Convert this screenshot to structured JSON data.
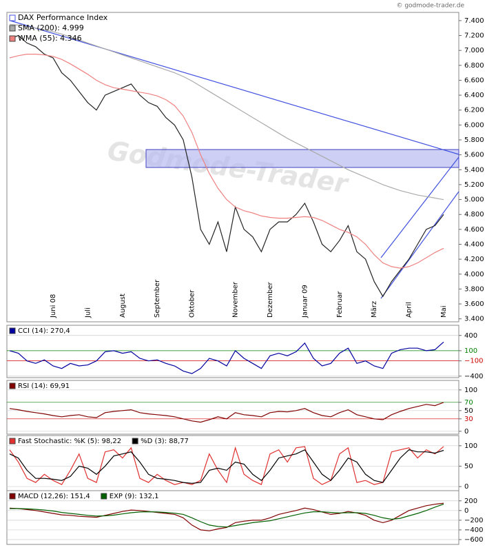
{
  "copyright": "© godmode-trader.de",
  "watermark": "Godmode-Trader",
  "chart_data": [
    {
      "type": "line",
      "categories": [
        null,
        null,
        null,
        null,
        null,
        "Juni 08",
        null,
        null,
        null,
        "Juli",
        null,
        null,
        null,
        "August",
        null,
        null,
        null,
        "September",
        null,
        null,
        null,
        "Oktober",
        null,
        null,
        null,
        null,
        "November",
        null,
        null,
        null,
        "Dezember",
        null,
        null,
        null,
        "Januar 09",
        null,
        null,
        null,
        "Februar",
        null,
        null,
        null,
        "März",
        null,
        null,
        null,
        "April",
        null,
        null,
        null,
        "Mai"
      ],
      "series": [
        {
          "name": "DAX Performance Index",
          "color": "#222222",
          "values": [
            7150,
            7200,
            7100,
            7050,
            6950,
            6900,
            6700,
            6600,
            6450,
            6300,
            6200,
            6400,
            6450,
            6500,
            6550,
            6400,
            6300,
            6250,
            6100,
            6000,
            5800,
            5300,
            4600,
            4400,
            4700,
            4300,
            4900,
            4600,
            4500,
            4300,
            4600,
            4700,
            4700,
            4800,
            4950,
            4700,
            4400,
            4300,
            4450,
            4650,
            4300,
            4200,
            3900,
            3700,
            3900,
            4050,
            4200,
            4400,
            4600,
            4650,
            4800
          ]
        },
        {
          "name": "SMA (200): 4.999",
          "color": "#aaaaaa",
          "values": [
            7350,
            7340,
            7320,
            7300,
            7280,
            7250,
            7220,
            7180,
            7140,
            7100,
            7060,
            7020,
            6980,
            6940,
            6900,
            6860,
            6820,
            6780,
            6740,
            6700,
            6650,
            6590,
            6520,
            6450,
            6380,
            6310,
            6240,
            6170,
            6100,
            6030,
            5960,
            5890,
            5820,
            5760,
            5700,
            5640,
            5580,
            5520,
            5460,
            5400,
            5350,
            5300,
            5250,
            5200,
            5160,
            5120,
            5090,
            5060,
            5040,
            5020,
            4999
          ]
        },
        {
          "name": "WMA (55): 4.346",
          "color": "#f08080",
          "values": [
            6900,
            6930,
            6950,
            6950,
            6940,
            6920,
            6880,
            6820,
            6750,
            6680,
            6600,
            6540,
            6500,
            6480,
            6460,
            6440,
            6420,
            6390,
            6340,
            6260,
            6120,
            5900,
            5600,
            5350,
            5150,
            5000,
            4900,
            4850,
            4820,
            4780,
            4760,
            4750,
            4750,
            4760,
            4770,
            4760,
            4720,
            4660,
            4600,
            4560,
            4500,
            4400,
            4260,
            4150,
            4100,
            4080,
            4100,
            4150,
            4220,
            4290,
            4346
          ]
        }
      ],
      "ylim": [
        3360,
        7510
      ],
      "yticks": [
        {
          "value": 7400,
          "label": "7.400"
        },
        {
          "value": 7200,
          "label": "7.200"
        },
        {
          "value": 7000,
          "label": "7.000"
        },
        {
          "value": 6800,
          "label": "6.800"
        },
        {
          "value": 6600,
          "label": "6.600"
        },
        {
          "value": 6400,
          "label": "6.400"
        },
        {
          "value": 6200,
          "label": "6.200"
        },
        {
          "value": 6000,
          "label": "6.000"
        },
        {
          "value": 5800,
          "label": "5.800"
        },
        {
          "value": 5600,
          "label": "5.600"
        },
        {
          "value": 5400,
          "label": "5.400"
        },
        {
          "value": 5200,
          "label": "5.200"
        },
        {
          "value": 5000,
          "label": "5.000"
        },
        {
          "value": 4800,
          "label": "4.800"
        },
        {
          "value": 4600,
          "label": "4.600"
        },
        {
          "value": 4400,
          "label": "4.400"
        },
        {
          "value": 4200,
          "label": "4.200"
        },
        {
          "value": 4000,
          "label": "4.000"
        },
        {
          "value": 3800,
          "label": "3.800"
        },
        {
          "value": 3600,
          "label": "3.600"
        },
        {
          "value": 3400,
          "label": "3.400"
        }
      ],
      "grid": false
    },
    {
      "type": "line",
      "series": [
        {
          "name": "CCI (14): 270,4",
          "color": "#0000a0",
          "values": [
            100,
            50,
            -100,
            -150,
            -80,
            -200,
            -250,
            -150,
            -200,
            -180,
            -100,
            80,
            100,
            50,
            80,
            -50,
            -100,
            -80,
            -150,
            -200,
            -300,
            -350,
            -250,
            -50,
            -100,
            -200,
            100,
            -50,
            -150,
            -250,
            0,
            50,
            0,
            80,
            250,
            -50,
            -200,
            -150,
            50,
            150,
            -150,
            -100,
            -200,
            -250,
            50,
            120,
            150,
            150,
            100,
            120,
            270.4
          ]
        }
      ],
      "ylim": [
        -430,
        600
      ],
      "yticks": [
        400,
        100,
        {
          "value": -100,
          "label": "−100"
        },
        {
          "value": -400,
          "label": "−400"
        }
      ],
      "ytick_colors": [
        "#000000",
        "#008000",
        "#d00000",
        "#000000"
      ],
      "grid": true
    },
    {
      "type": "line",
      "series": [
        {
          "name": "RSI (14): 69,91",
          "color": "#800000",
          "values": [
            55,
            52,
            48,
            45,
            42,
            38,
            35,
            38,
            40,
            35,
            33,
            45,
            48,
            50,
            52,
            45,
            42,
            40,
            38,
            35,
            30,
            25,
            22,
            28,
            35,
            30,
            45,
            40,
            38,
            35,
            45,
            48,
            47,
            50,
            55,
            45,
            38,
            35,
            45,
            52,
            40,
            35,
            30,
            28,
            40,
            48,
            55,
            60,
            65,
            62,
            69.91
          ]
        }
      ],
      "ylim": [
        -7,
        123
      ],
      "yticks": [
        100,
        70,
        50,
        30,
        0
      ],
      "ytick_colors": [
        "#000000",
        "#008000",
        "#000000",
        "#d00000",
        "#000000"
      ],
      "grid": true
    },
    {
      "type": "line",
      "series": [
        {
          "name": "Fast Stochastic: %K (5): 98,22",
          "color": "#e03030",
          "values": [
            90,
            60,
            20,
            10,
            30,
            15,
            5,
            40,
            80,
            20,
            10,
            85,
            90,
            70,
            95,
            20,
            10,
            30,
            15,
            5,
            10,
            5,
            15,
            80,
            40,
            10,
            95,
            30,
            15,
            5,
            80,
            90,
            60,
            95,
            98,
            20,
            5,
            15,
            80,
            95,
            10,
            15,
            5,
            10,
            85,
            90,
            95,
            70,
            90,
            80,
            98.22
          ]
        },
        {
          "name": "%D (3): 88,77",
          "color": "#000000",
          "values": [
            80,
            70,
            40,
            20,
            20,
            18,
            15,
            25,
            50,
            45,
            30,
            50,
            75,
            80,
            85,
            60,
            30,
            20,
            18,
            15,
            10,
            8,
            10,
            40,
            45,
            40,
            60,
            55,
            30,
            15,
            40,
            70,
            75,
            80,
            90,
            60,
            30,
            15,
            40,
            70,
            60,
            30,
            15,
            10,
            40,
            70,
            90,
            85,
            85,
            82,
            88.77
          ]
        }
      ],
      "ylim": [
        -10,
        125
      ],
      "yticks": [
        100,
        50,
        0
      ],
      "grid": true
    },
    {
      "type": "line",
      "series": [
        {
          "name": "MACD (12,26): 151,4",
          "color": "#800000",
          "values": [
            50,
            40,
            20,
            0,
            -30,
            -60,
            -90,
            -100,
            -120,
            -130,
            -140,
            -100,
            -60,
            -20,
            10,
            0,
            -20,
            -40,
            -60,
            -80,
            -150,
            -300,
            -400,
            -420,
            -380,
            -350,
            -250,
            -220,
            -200,
            -200,
            -150,
            -80,
            -40,
            0,
            50,
            20,
            -30,
            -80,
            -60,
            -20,
            -50,
            -100,
            -200,
            -250,
            -200,
            -100,
            0,
            50,
            100,
            130,
            151.4
          ]
        },
        {
          "name": "EXP (9): 132,1",
          "color": "#006000",
          "values": [
            40,
            40,
            35,
            25,
            10,
            -10,
            -40,
            -60,
            -80,
            -100,
            -115,
            -110,
            -95,
            -70,
            -45,
            -30,
            -25,
            -30,
            -40,
            -55,
            -80,
            -150,
            -230,
            -300,
            -330,
            -340,
            -310,
            -280,
            -250,
            -230,
            -210,
            -170,
            -130,
            -90,
            -50,
            -25,
            -25,
            -40,
            -50,
            -45,
            -45,
            -60,
            -100,
            -150,
            -180,
            -160,
            -110,
            -60,
            0,
            70,
            132.1
          ]
        }
      ],
      "ylim": [
        -700,
        410
      ],
      "yticks": [
        200,
        0,
        {
          "value": -200,
          "label": "−200"
        },
        {
          "value": -400,
          "label": "−400"
        },
        {
          "value": -600,
          "label": "−600"
        }
      ],
      "grid": true
    }
  ]
}
